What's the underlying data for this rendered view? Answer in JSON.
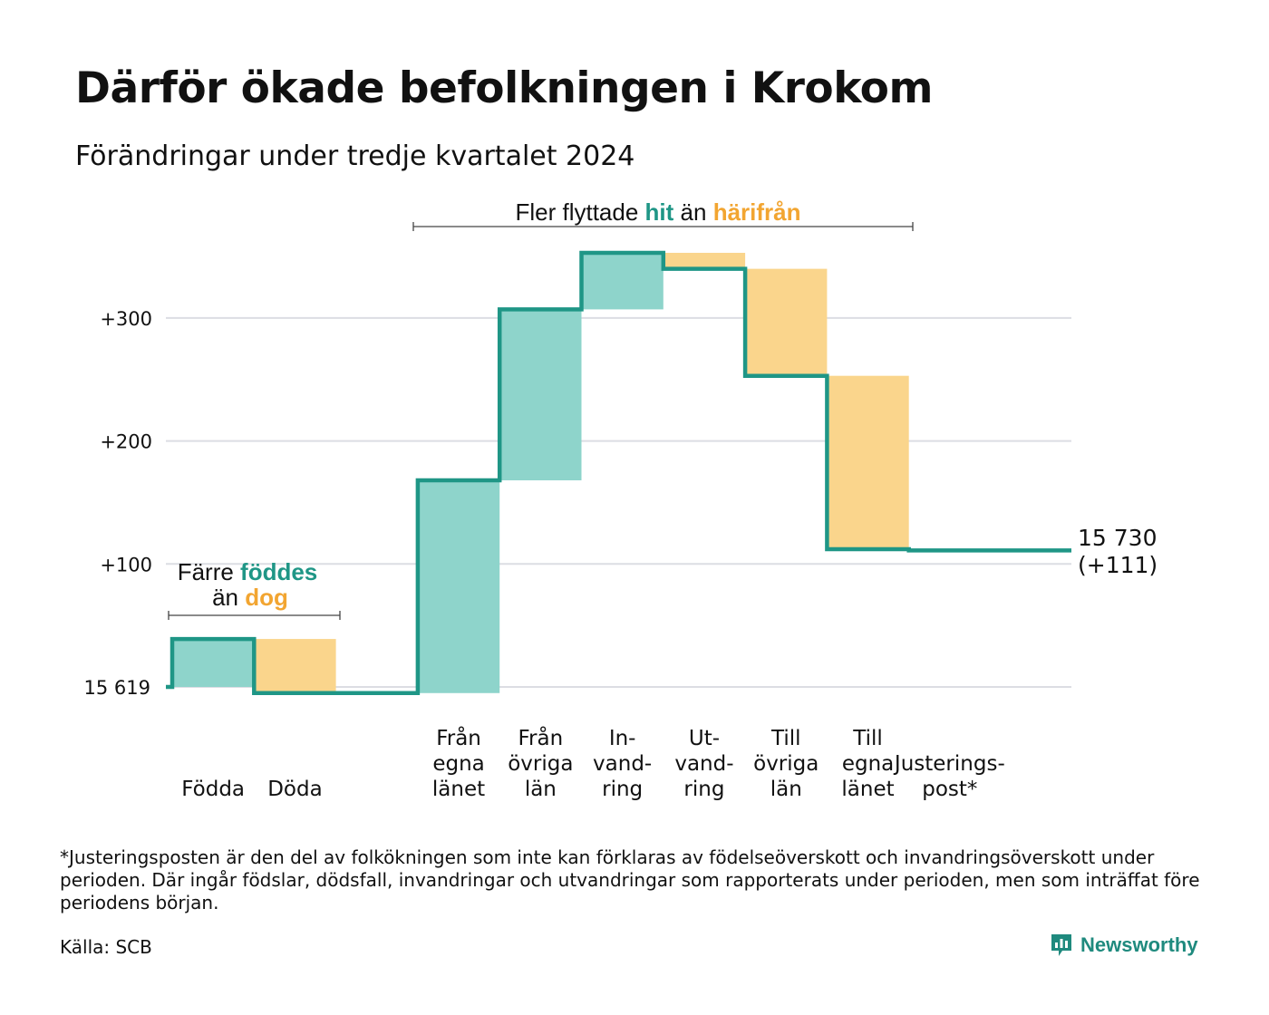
{
  "title": "Därför ökade befolkningen i Krokom",
  "subtitle": "Förändringar under tredje kvartalet 2024",
  "annotations": {
    "births": {
      "line1_a": "Färre ",
      "line1_b": "föddes",
      "line2_a": "än ",
      "line2_b": "dog"
    },
    "migration": {
      "part1": "Fler flyttade ",
      "part2": "hit",
      "part3": " än ",
      "part4": "härifrån"
    }
  },
  "end_label": {
    "value": "15 730",
    "change": "(+111)"
  },
  "footnote": "*Justeringsposten är den del av folkökningen som inte kan förklaras av födelseöverskott och invandringsöverskott under perioden. Där ingår födslar, dödsfall, invandringar och utvandringar som rapporterats under perioden, men som inträffat före periodens början.",
  "source": "Källa: SCB",
  "brand": "Newsworthy",
  "colors": {
    "positive": "#8ed4cb",
    "negative": "#fad58c",
    "line": "#1f9686",
    "teal_text": "#1f9686",
    "orange_text": "#f2a531",
    "grid": "#dcdde3"
  },
  "chart_data": {
    "type": "waterfall",
    "start_value": 15619,
    "start_label": "15 619",
    "end_value": 15730,
    "y_ticks": [
      {
        "value": 100,
        "label": "+100"
      },
      {
        "value": 200,
        "label": "+200"
      },
      {
        "value": 300,
        "label": "+300"
      }
    ],
    "ylim": [
      -15,
      365
    ],
    "steps": [
      {
        "lines": [
          "Födda"
        ],
        "change": 39,
        "sign": "positive"
      },
      {
        "lines": [
          "Döda"
        ],
        "change": -44,
        "sign": "negative"
      },
      {
        "lines": [],
        "change": 0,
        "sign": "none"
      },
      {
        "lines": [
          "Från",
          "egna",
          "länet"
        ],
        "change": 173,
        "sign": "positive"
      },
      {
        "lines": [
          "Från",
          "övriga",
          "län"
        ],
        "change": 139,
        "sign": "positive"
      },
      {
        "lines": [
          "In-",
          "vand-",
          "ring"
        ],
        "change": 46,
        "sign": "positive"
      },
      {
        "lines": [
          "Ut-",
          "vand-",
          "ring"
        ],
        "change": -13,
        "sign": "negative"
      },
      {
        "lines": [
          "Till",
          "övriga",
          "län"
        ],
        "change": -87,
        "sign": "negative"
      },
      {
        "lines": [
          "Till",
          "egna",
          "länet"
        ],
        "change": -141,
        "sign": "negative"
      },
      {
        "lines": [
          "Justerings-",
          "post*"
        ],
        "change": -1,
        "sign": "negative"
      }
    ]
  }
}
